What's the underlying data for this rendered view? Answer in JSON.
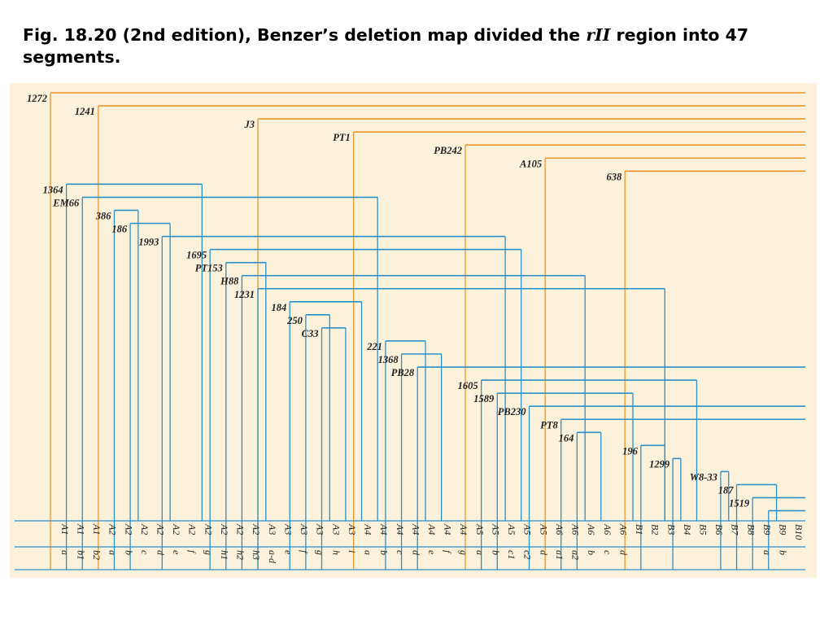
{
  "title": {
    "part1": "Fig. 18.20 (2nd edition), Benzer",
    "apos": "ʼ",
    "part2": "s deletion map divided the ",
    "rii": "rII",
    "part3": " region into 47 segments."
  },
  "colors": {
    "background": "#fcf2dc",
    "long_deletion": "#e8962e",
    "deletion": "#2b8fc9",
    "rule": "#2b8fc9",
    "text": "#222222"
  },
  "segments": [
    {
      "region": "A1",
      "sub": "a"
    },
    {
      "region": "A1",
      "sub": "b1"
    },
    {
      "region": "A1",
      "sub": "b2"
    },
    {
      "region": "A2",
      "sub": "a"
    },
    {
      "region": "A2",
      "sub": "b"
    },
    {
      "region": "A2",
      "sub": "c"
    },
    {
      "region": "A2",
      "sub": "d"
    },
    {
      "region": "A2",
      "sub": "e"
    },
    {
      "region": "A2",
      "sub": "f"
    },
    {
      "region": "A2",
      "sub": "g"
    },
    {
      "region": "A2",
      "sub": "h1"
    },
    {
      "region": "A2",
      "sub": "h2"
    },
    {
      "region": "A2",
      "sub": "h3"
    },
    {
      "region": "A3",
      "sub": "a-d"
    },
    {
      "region": "A3",
      "sub": "e"
    },
    {
      "region": "A3",
      "sub": "f"
    },
    {
      "region": "A3",
      "sub": "g"
    },
    {
      "region": "A3",
      "sub": "h"
    },
    {
      "region": "A3",
      "sub": "i"
    },
    {
      "region": "A4",
      "sub": "a"
    },
    {
      "region": "A4",
      "sub": "b"
    },
    {
      "region": "A4",
      "sub": "c"
    },
    {
      "region": "A4",
      "sub": "d"
    },
    {
      "region": "A4",
      "sub": "e"
    },
    {
      "region": "A4",
      "sub": "f"
    },
    {
      "region": "A4",
      "sub": "g"
    },
    {
      "region": "A5",
      "sub": "a"
    },
    {
      "region": "A5",
      "sub": "b"
    },
    {
      "region": "A5",
      "sub": "c1"
    },
    {
      "region": "A5",
      "sub": "c2"
    },
    {
      "region": "A5",
      "sub": "d"
    },
    {
      "region": "A6",
      "sub": "a1"
    },
    {
      "region": "A6",
      "sub": "a2"
    },
    {
      "region": "A6",
      "sub": "b"
    },
    {
      "region": "A6",
      "sub": "c"
    },
    {
      "region": "A6",
      "sub": "d"
    },
    {
      "region": "B1",
      "sub": ""
    },
    {
      "region": "B2",
      "sub": ""
    },
    {
      "region": "B3",
      "sub": ""
    },
    {
      "region": "B4",
      "sub": ""
    },
    {
      "region": "B5",
      "sub": ""
    },
    {
      "region": "B6",
      "sub": ""
    },
    {
      "region": "B7",
      "sub": ""
    },
    {
      "region": "B8",
      "sub": ""
    },
    {
      "region": "B9",
      "sub": "a"
    },
    {
      "region": "B9",
      "sub": "b"
    },
    {
      "region": "B10",
      "sub": ""
    }
  ],
  "deletions": [
    {
      "label": "1272",
      "start": 0,
      "end": 47,
      "type": "long"
    },
    {
      "label": "1241",
      "start": 3,
      "end": 47,
      "type": "long"
    },
    {
      "label": "J3",
      "start": 13,
      "end": 47,
      "type": "long"
    },
    {
      "label": "PT1",
      "start": 19,
      "end": 47,
      "type": "long"
    },
    {
      "label": "PB242",
      "start": 26,
      "end": 47,
      "type": "long"
    },
    {
      "label": "A105",
      "start": 31,
      "end": 47,
      "type": "long"
    },
    {
      "label": "638",
      "start": 36,
      "end": 47,
      "type": "long"
    },
    {
      "label": "1364",
      "start": 1,
      "end": 10,
      "type": "short"
    },
    {
      "label": "EM66",
      "start": 2,
      "end": 21,
      "type": "short"
    },
    {
      "label": "386",
      "start": 4,
      "end": 6,
      "type": "short"
    },
    {
      "label": "186",
      "start": 5,
      "end": 8,
      "type": "short"
    },
    {
      "label": "1993",
      "start": 7,
      "end": 29,
      "type": "short"
    },
    {
      "label": "1695",
      "start": 10,
      "end": 30,
      "type": "short"
    },
    {
      "label": "PT153",
      "start": 11,
      "end": 14,
      "type": "short"
    },
    {
      "label": "H88",
      "start": 12,
      "end": 34,
      "type": "short"
    },
    {
      "label": "1231",
      "start": 13,
      "end": 39,
      "type": "short"
    },
    {
      "label": "184",
      "start": 15,
      "end": 20,
      "type": "short"
    },
    {
      "label": "250",
      "start": 16,
      "end": 18,
      "type": "short"
    },
    {
      "label": "C33",
      "start": 17,
      "end": 19,
      "type": "short"
    },
    {
      "label": "221",
      "start": 21,
      "end": 24,
      "type": "short"
    },
    {
      "label": "1368",
      "start": 22,
      "end": 25,
      "type": "short"
    },
    {
      "label": "PB28",
      "start": 23,
      "end": 47,
      "type": "short"
    },
    {
      "label": "1605",
      "start": 27,
      "end": 41,
      "type": "short"
    },
    {
      "label": "1589",
      "start": 28,
      "end": 37,
      "type": "short"
    },
    {
      "label": "PB230",
      "start": 30,
      "end": 47,
      "type": "short"
    },
    {
      "label": "PT8",
      "start": 32,
      "end": 47,
      "type": "short"
    },
    {
      "label": "164",
      "start": 33,
      "end": 35,
      "type": "short"
    },
    {
      "label": "196",
      "start": 37,
      "end": 39,
      "type": "short"
    },
    {
      "label": "1299",
      "start": 39,
      "end": 40,
      "type": "short"
    },
    {
      "label": "W8-33",
      "start": 42,
      "end": 43,
      "type": "short"
    },
    {
      "label": "187",
      "start": 43,
      "end": 46,
      "type": "short"
    },
    {
      "label": "1519",
      "start": 44,
      "end": 47,
      "type": "short"
    },
    {
      "label": "",
      "start": 45,
      "end": 47,
      "type": "short"
    }
  ]
}
